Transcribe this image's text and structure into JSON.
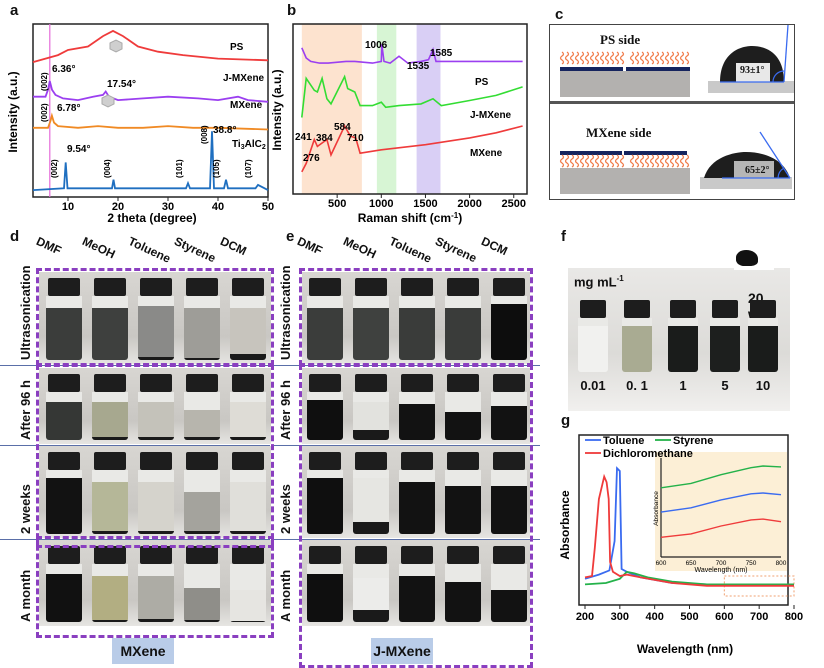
{
  "figure": {
    "panel_labels": [
      "a",
      "b",
      "c",
      "d",
      "e",
      "f",
      "g"
    ]
  },
  "chart_data": [
    {
      "id": "a",
      "type": "line",
      "title": "",
      "xlabel": "2 theta (degree)",
      "ylabel": "Intensity (a.u.)",
      "xlim": [
        3,
        50
      ],
      "xticks": [
        10,
        20,
        30,
        40,
        50
      ],
      "series": [
        {
          "name": "PS",
          "color": "#ef3b3b",
          "x": [
            3,
            8,
            10,
            14,
            17,
            19,
            21,
            24,
            28,
            33,
            40,
            50
          ],
          "y": [
            0.78,
            0.82,
            0.85,
            0.87,
            0.93,
            0.96,
            0.93,
            0.87,
            0.84,
            0.82,
            0.8,
            0.79
          ]
        },
        {
          "name": "J-MXene",
          "color": "#9b3ff0",
          "x": [
            3,
            5.5,
            6.0,
            6.36,
            6.8,
            7.5,
            9,
            12,
            15,
            17,
            17.54,
            18.2,
            20,
            25,
            30,
            36,
            40,
            44,
            46,
            50
          ],
          "y": [
            0.58,
            0.58,
            0.62,
            0.67,
            0.62,
            0.59,
            0.57,
            0.56,
            0.58,
            0.59,
            0.61,
            0.58,
            0.56,
            0.57,
            0.58,
            0.57,
            0.56,
            0.58,
            0.56,
            0.55
          ]
        },
        {
          "name": "MXene",
          "color": "#f08a24",
          "x": [
            3,
            6,
            6.5,
            6.78,
            7.2,
            8,
            12,
            16,
            20,
            25,
            30,
            35,
            40,
            50
          ],
          "y": [
            0.4,
            0.4,
            0.44,
            0.47,
            0.43,
            0.41,
            0.4,
            0.41,
            0.4,
            0.4,
            0.41,
            0.4,
            0.4,
            0.39
          ]
        },
        {
          "name": "Ti3AlC2",
          "color": "#1f6fc0",
          "x": [
            3,
            9.2,
            9.54,
            9.9,
            18.8,
            19.1,
            19.4,
            33.6,
            34.0,
            34.4,
            38.4,
            38.8,
            39.2,
            41.2,
            41.6,
            42,
            47.5,
            48,
            50
          ],
          "y": [
            0.04,
            0.05,
            0.2,
            0.05,
            0.05,
            0.1,
            0.05,
            0.05,
            0.08,
            0.05,
            0.05,
            0.38,
            0.05,
            0.05,
            0.1,
            0.05,
            0.05,
            0.07,
            0.04
          ]
        }
      ],
      "annotations": [
        {
          "text": "6.36°",
          "x": 6.36,
          "series": "J-MXene"
        },
        {
          "text": "17.54°",
          "x": 17.54,
          "series": "J-MXene"
        },
        {
          "text": "6.78°",
          "x": 6.78,
          "series": "MXene"
        },
        {
          "text": "9.54°",
          "x": 9.54,
          "series": "Ti3AlC2"
        },
        {
          "text": "38.8°",
          "x": 38.8,
          "series": "Ti3AlC2"
        }
      ],
      "hkl_labels": [
        "(002)",
        "(002)",
        "(002)",
        "(004)",
        "(101)",
        "(008)",
        "(105)",
        "(107)"
      ],
      "series_labels": [
        "PS",
        "J-MXene",
        "MXene",
        "Ti3AlC2"
      ],
      "reference_line_x": 6.36
    },
    {
      "id": "b",
      "type": "line",
      "xlabel": "Raman shift (cm-1)",
      "ylabel": "Intensity (a.u.)",
      "xlim": [
        100,
        2600
      ],
      "xticks": [
        500,
        1000,
        1500,
        2000,
        2500
      ],
      "shaded_bands": [
        {
          "from": 100,
          "to": 780,
          "color": "#fde3cf"
        },
        {
          "from": 950,
          "to": 1170,
          "color": "#d7f5d4"
        },
        {
          "from": 1400,
          "to": 1670,
          "color": "#d9cff5"
        }
      ],
      "series": [
        {
          "name": "PS",
          "color": "#9b3ff0",
          "x": [
            100,
            150,
            200,
            300,
            400,
            600,
            700,
            900,
            1000,
            1006,
            1030,
            1100,
            1200,
            1300,
            1450,
            1535,
            1585,
            1620,
            2000,
            2600
          ],
          "y": [
            0.86,
            0.8,
            0.78,
            0.77,
            0.77,
            0.78,
            0.78,
            0.77,
            0.78,
            0.88,
            0.78,
            0.77,
            0.81,
            0.77,
            0.78,
            0.79,
            0.85,
            0.78,
            0.78,
            0.78
          ]
        },
        {
          "name": "J-MXene",
          "color": "#33dd33",
          "x": [
            100,
            150,
            241,
            276,
            330,
            384,
            430,
            584,
            620,
            700,
            760,
            900,
            1000,
            1050,
            1200,
            1450,
            1585,
            1680,
            2000,
            2300,
            2600
          ],
          "y": [
            0.45,
            0.68,
            0.61,
            0.6,
            0.68,
            0.56,
            0.53,
            0.69,
            0.62,
            0.6,
            0.52,
            0.52,
            0.54,
            0.51,
            0.52,
            0.53,
            0.56,
            0.52,
            0.55,
            0.58,
            0.63
          ]
        },
        {
          "name": "MXene",
          "color": "#ef3b3b",
          "x": [
            100,
            150,
            241,
            276,
            330,
            384,
            430,
            584,
            650,
            710,
            760,
            1000,
            1500,
            2000,
            2300,
            2600
          ],
          "y": [
            0.13,
            0.18,
            0.32,
            0.28,
            0.3,
            0.32,
            0.23,
            0.4,
            0.34,
            0.33,
            0.24,
            0.26,
            0.29,
            0.33,
            0.36,
            0.4
          ]
        }
      ],
      "annotations": [
        "1006",
        "1535",
        "1585",
        "241",
        "276",
        "384",
        "584",
        "710"
      ],
      "series_labels": [
        "PS",
        "J-MXene",
        "MXene"
      ]
    },
    {
      "id": "g",
      "type": "line",
      "xlabel": "Wavelength (nm)",
      "ylabel": "Absorbance",
      "xlim": [
        200,
        800
      ],
      "xticks": [
        200,
        300,
        400,
        500,
        600,
        700,
        800
      ],
      "legend": [
        "Toluene",
        "Styrene",
        "Dichloromethane"
      ],
      "legend_placement": "top-left",
      "series": [
        {
          "name": "Toluene",
          "color": "#3a6bf0",
          "x": [
            200,
            240,
            270,
            285,
            292,
            300,
            305,
            320,
            360,
            450,
            550,
            650,
            800
          ],
          "y": [
            0.13,
            0.16,
            0.19,
            0.4,
            0.92,
            0.9,
            0.2,
            0.18,
            0.14,
            0.1,
            0.09,
            0.09,
            0.09
          ]
        },
        {
          "name": "Styrene",
          "color": "#24b24a",
          "x": [
            200,
            260,
            300,
            320,
            340,
            380,
            450,
            550,
            650,
            800
          ],
          "y": [
            0.09,
            0.1,
            0.13,
            0.18,
            0.17,
            0.14,
            0.11,
            0.09,
            0.09,
            0.09
          ]
        },
        {
          "name": "Dichloromethane",
          "color": "#ef3b3b",
          "x": [
            200,
            220,
            228,
            240,
            255,
            262,
            268,
            272,
            280,
            300,
            320,
            360,
            450,
            550,
            650,
            800
          ],
          "y": [
            0.14,
            0.15,
            0.35,
            0.7,
            0.86,
            0.82,
            0.7,
            0.25,
            0.18,
            0.15,
            0.16,
            0.14,
            0.1,
            0.08,
            0.08,
            0.08
          ]
        }
      ],
      "inset": {
        "xlabel": "Wavelength (nm)",
        "ylabel": "Absorbance",
        "xlim": [
          600,
          800
        ],
        "xticks": [
          600,
          650,
          700,
          750,
          800
        ],
        "series": [
          {
            "name": "Styrene",
            "color": "#24b24a",
            "x": [
              600,
              650,
              700,
              750,
              770,
              800
            ],
            "y": [
              0.75,
              0.8,
              0.9,
              0.98,
              1.0,
              0.99
            ]
          },
          {
            "name": "Toluene",
            "color": "#3a6bf0",
            "x": [
              600,
              650,
              700,
              750,
              770,
              800
            ],
            "y": [
              0.47,
              0.52,
              0.61,
              0.68,
              0.69,
              0.67
            ]
          },
          {
            "name": "Dichloromethane",
            "color": "#ef3b3b",
            "x": [
              600,
              650,
              700,
              750,
              770,
              800
            ],
            "y": [
              0.18,
              0.22,
              0.31,
              0.38,
              0.39,
              0.36
            ]
          }
        ]
      }
    }
  ],
  "panel_c": {
    "top_title": "PS side",
    "top_angle": "93±1°",
    "bottom_title": "MXene side",
    "bottom_angle": "65±2°"
  },
  "panel_d": {
    "columns": [
      "DMF",
      "MeOH",
      "Toluene",
      "Styrene",
      "DCM"
    ],
    "rows": [
      "Ultrasonication",
      "After 96 h",
      "2 weeks",
      "A month"
    ],
    "tag": "MXene"
  },
  "panel_e": {
    "columns": [
      "DMF",
      "MeOH",
      "Toluene",
      "Styrene",
      "DCM"
    ],
    "rows": [
      "Ultrasonication",
      "After 96 h",
      "2 weeks",
      "A month"
    ],
    "tag": "J-MXene"
  },
  "panel_f": {
    "unit": "mg mL",
    "unit_sup": "-1",
    "wt_label": "20 wt%",
    "concentrations": [
      "0.01",
      "0. 1",
      "1",
      "5",
      "10"
    ]
  }
}
